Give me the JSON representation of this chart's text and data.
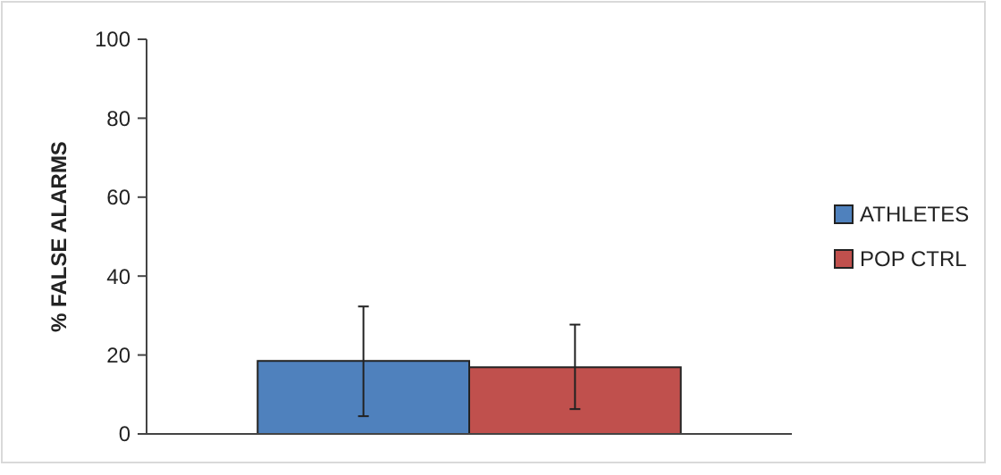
{
  "chart_data": {
    "type": "bar",
    "ylabel": "% FALSE ALARMS",
    "categories": [
      null
    ],
    "series": [
      {
        "name": "ATHLETES",
        "color": "#4f81bd",
        "values": [
          18.5
        ],
        "errors": [
          [
            4.5,
            32.3
          ]
        ]
      },
      {
        "name": "POP CTRL",
        "color": "#c0504d",
        "values": [
          16.9
        ],
        "errors": [
          [
            6.3,
            27.7
          ]
        ]
      }
    ],
    "ylim": [
      0,
      100
    ],
    "yticks": [
      0,
      20,
      40,
      60,
      80,
      100
    ],
    "grid": false,
    "legend": "right"
  }
}
